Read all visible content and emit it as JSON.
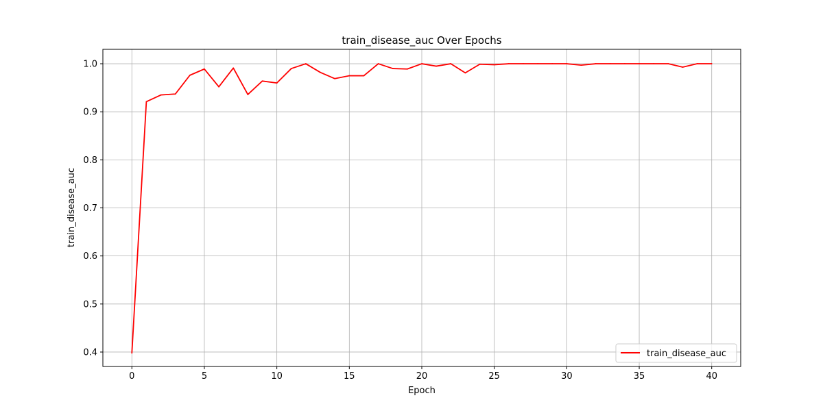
{
  "chart_data": {
    "type": "line",
    "title": "train_disease_auc Over Epochs",
    "xlabel": "Epoch",
    "ylabel": "train_disease_auc",
    "xlim": [
      -2,
      42
    ],
    "ylim": [
      0.37,
      1.03
    ],
    "xticks": [
      0,
      5,
      10,
      15,
      20,
      25,
      30,
      35,
      40
    ],
    "yticks": [
      0.4,
      0.5,
      0.6,
      0.7,
      0.8,
      0.9,
      1.0
    ],
    "xtick_labels": [
      "0",
      "5",
      "10",
      "15",
      "20",
      "25",
      "30",
      "35",
      "40"
    ],
    "ytick_labels": [
      "0.4",
      "0.5",
      "0.6",
      "0.7",
      "0.8",
      "0.9",
      "1.0"
    ],
    "grid": true,
    "legend_position": "lower-right",
    "series": [
      {
        "name": "train_disease_auc",
        "color": "#ff0000",
        "x": [
          0,
          1,
          2,
          3,
          4,
          5,
          6,
          7,
          8,
          9,
          10,
          11,
          12,
          13,
          14,
          15,
          16,
          17,
          18,
          19,
          20,
          21,
          22,
          23,
          24,
          25,
          26,
          27,
          28,
          29,
          30,
          31,
          32,
          33,
          34,
          35,
          36,
          37,
          38,
          39,
          40
        ],
        "y": [
          0.398,
          0.921,
          0.935,
          0.937,
          0.976,
          0.989,
          0.952,
          0.991,
          0.936,
          0.964,
          0.96,
          0.99,
          1.0,
          0.982,
          0.969,
          0.975,
          0.975,
          1.0,
          0.99,
          0.989,
          1.0,
          0.995,
          1.0,
          0.981,
          0.999,
          0.998,
          1.0,
          1.0,
          1.0,
          1.0,
          1.0,
          0.997,
          1.0,
          1.0,
          1.0,
          1.0,
          1.0,
          1.0,
          0.993,
          1.0,
          1.0
        ]
      }
    ]
  }
}
